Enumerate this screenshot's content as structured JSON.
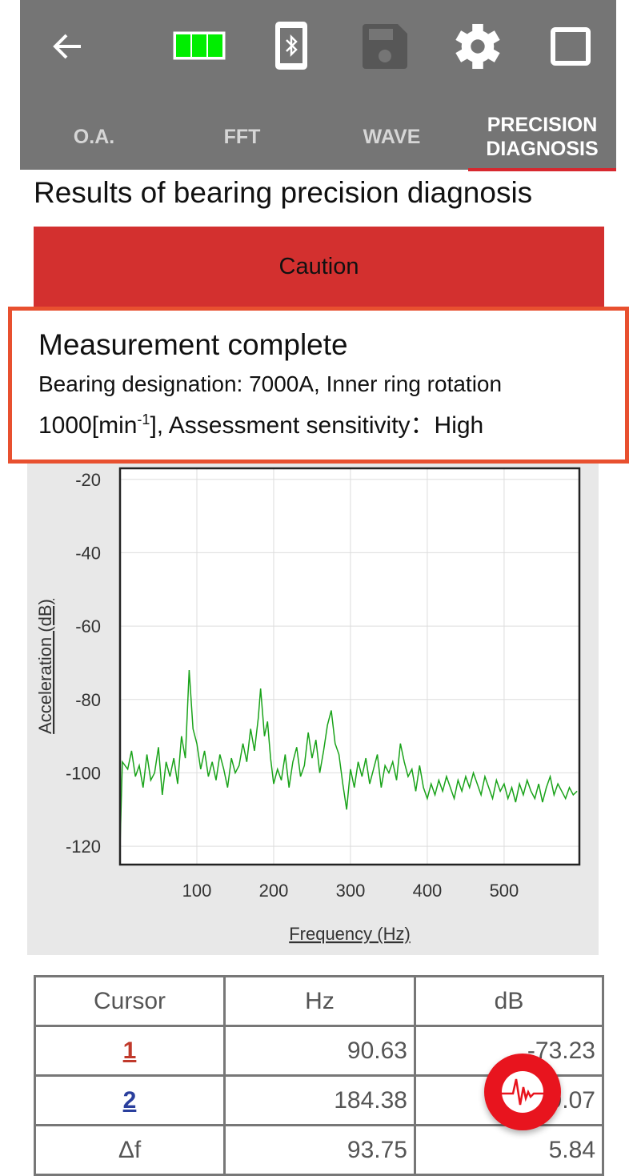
{
  "header": {
    "icons": [
      "back-arrow-icon",
      "battery-icon",
      "bluetooth-device-icon",
      "save-icon",
      "gear-icon",
      "window-icon"
    ],
    "battery_color": "#00ee00",
    "tabs": [
      {
        "label": "O.A."
      },
      {
        "label": "FFT"
      },
      {
        "label": "WAVE"
      },
      {
        "label": "PRECISION DIAGNOSIS",
        "active": true
      }
    ]
  },
  "title": "Results of bearing precision diagnosis",
  "status": {
    "label": "Caution",
    "color": "#d3302f"
  },
  "message": {
    "heading": "Measurement complete",
    "line1": "Bearing designation: 7000A, Inner ring rotation",
    "line2_prefix": "1000[min",
    "line2_sup": "-1",
    "line2_suffix": "], Assessment sensitivity：High"
  },
  "chart_data": {
    "type": "line",
    "xlabel": "Frequency (Hz)",
    "ylabel": "Acceleration (dB)",
    "xlim": [
      0,
      598
    ],
    "ylim": [
      -125,
      -17
    ],
    "xticks": [
      100,
      200,
      300,
      400,
      500
    ],
    "yticks": [
      -20,
      -40,
      -60,
      -80,
      -100,
      -120
    ],
    "grid": true,
    "line_color": "#1aa31a",
    "x": [
      0,
      3,
      10,
      15,
      20,
      25,
      30,
      35,
      40,
      45,
      50,
      55,
      60,
      65,
      70,
      75,
      80,
      85,
      90,
      95,
      100,
      105,
      110,
      115,
      120,
      125,
      130,
      135,
      140,
      145,
      150,
      155,
      160,
      165,
      170,
      175,
      180,
      183,
      188,
      192,
      196,
      200,
      205,
      210,
      215,
      220,
      225,
      230,
      235,
      240,
      245,
      250,
      255,
      260,
      265,
      270,
      275,
      280,
      285,
      290,
      295,
      300,
      305,
      310,
      315,
      320,
      325,
      330,
      335,
      340,
      345,
      350,
      355,
      360,
      365,
      370,
      375,
      380,
      385,
      390,
      395,
      400,
      405,
      410,
      415,
      420,
      425,
      430,
      435,
      440,
      445,
      450,
      455,
      460,
      465,
      470,
      475,
      480,
      485,
      490,
      495,
      500,
      505,
      510,
      515,
      520,
      525,
      530,
      535,
      540,
      545,
      550,
      555,
      560,
      565,
      570,
      575,
      580,
      585,
      590,
      595
    ],
    "y": [
      -120,
      -97,
      -99,
      -94,
      -101,
      -98,
      -104,
      -95,
      -102,
      -100,
      -93,
      -106,
      -97,
      -101,
      -96,
      -103,
      -90,
      -96,
      -72,
      -88,
      -92,
      -99,
      -94,
      -101,
      -97,
      -102,
      -95,
      -99,
      -104,
      -96,
      -100,
      -98,
      -92,
      -97,
      -88,
      -94,
      -85,
      -77,
      -90,
      -86,
      -96,
      -103,
      -99,
      -102,
      -95,
      -104,
      -97,
      -93,
      -101,
      -98,
      -89,
      -96,
      -91,
      -100,
      -94,
      -87,
      -83,
      -92,
      -95,
      -103,
      -110,
      -99,
      -104,
      -97,
      -101,
      -96,
      -103,
      -99,
      -95,
      -104,
      -98,
      -100,
      -97,
      -102,
      -92,
      -97,
      -101,
      -99,
      -105,
      -98,
      -104,
      -107,
      -103,
      -106,
      -102,
      -105,
      -101,
      -104,
      -107,
      -102,
      -105,
      -101,
      -104,
      -100,
      -103,
      -106,
      -101,
      -104,
      -107,
      -102,
      -105,
      -103,
      -107,
      -104,
      -108,
      -103,
      -106,
      -102,
      -105,
      -107,
      -103,
      -108,
      -104,
      -101,
      -106,
      -103,
      -105,
      -107,
      -104,
      -106,
      -105
    ]
  },
  "table": {
    "headers": [
      "Cursor",
      "Hz",
      "dB"
    ],
    "rows": [
      {
        "cursor": "1",
        "hz": "90.63",
        "db": "-73.23",
        "color": "#c0392b"
      },
      {
        "cursor": "2",
        "hz": "184.38",
        "db": "-79.07",
        "color": "#2a3f9d"
      },
      {
        "cursor": "Δf",
        "hz": "93.75",
        "db": "5.84"
      }
    ]
  },
  "fab": {
    "icon": "waveform-icon"
  }
}
